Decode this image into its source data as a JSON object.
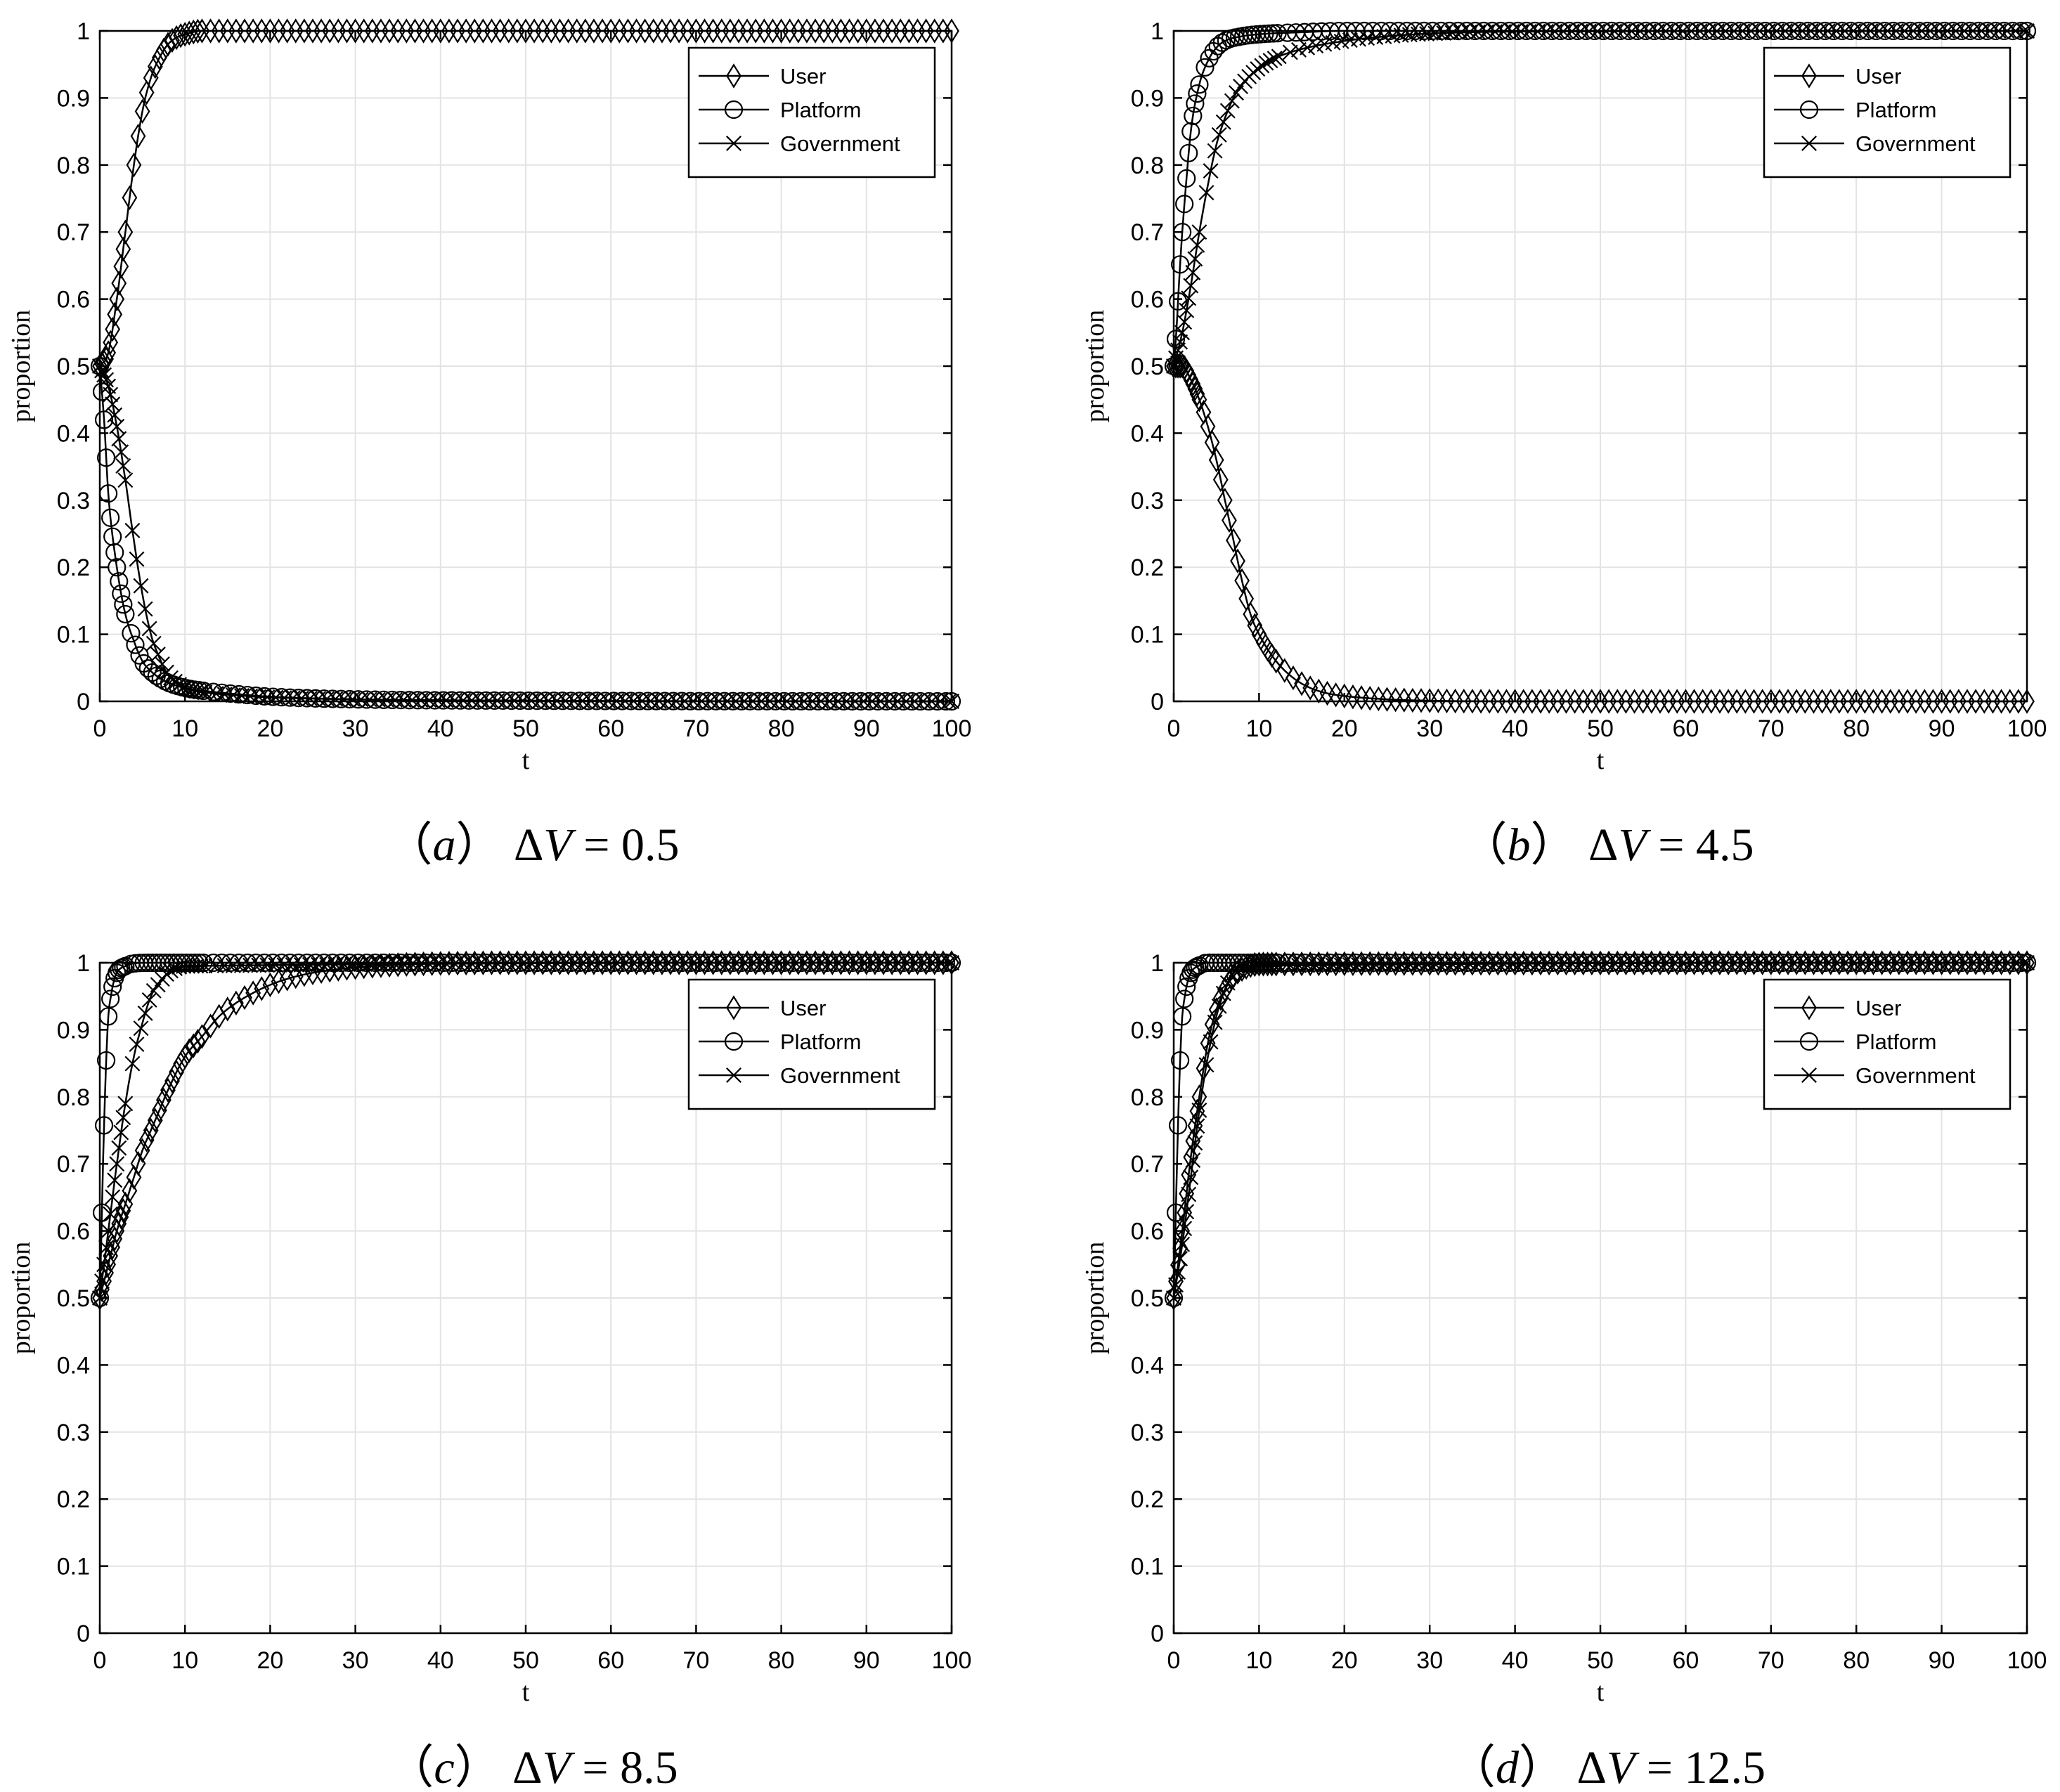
{
  "chart_data": [
    {
      "type": "line",
      "panel": "a",
      "caption_label": "a",
      "caption_eq": "ΔV = 0.5",
      "xlabel": "t",
      "ylabel": "proportion",
      "xlim": [
        0,
        100
      ],
      "ylim": [
        0,
        1
      ],
      "xticks": [
        "0",
        "10",
        "20",
        "30",
        "40",
        "50",
        "60",
        "70",
        "80",
        "90",
        "100"
      ],
      "yticks": [
        "0",
        "0.1",
        "0.2",
        "0.3",
        "0.4",
        "0.5",
        "0.6",
        "0.7",
        "0.8",
        "0.9",
        "1"
      ],
      "grid": true,
      "legend_position": "top-right",
      "series": [
        {
          "name": "User",
          "marker": "diamond",
          "x": [
            0,
            1,
            2,
            3,
            4,
            5,
            6,
            7,
            8,
            9,
            10,
            12,
            15,
            20,
            30,
            50,
            100
          ],
          "y": [
            0.5,
            0.52,
            0.6,
            0.7,
            0.8,
            0.88,
            0.93,
            0.96,
            0.98,
            0.99,
            0.995,
            1,
            1,
            1,
            1,
            1,
            1
          ]
        },
        {
          "name": "Platform",
          "marker": "circle",
          "x": [
            0,
            0.5,
            1,
            2,
            3,
            4,
            5,
            6,
            7,
            8,
            10,
            12,
            15,
            20,
            30,
            50,
            100
          ],
          "y": [
            0.5,
            0.42,
            0.31,
            0.2,
            0.13,
            0.09,
            0.06,
            0.045,
            0.035,
            0.028,
            0.02,
            0.016,
            0.012,
            0.007,
            0.003,
            0.001,
            0
          ]
        },
        {
          "name": "Government",
          "marker": "x",
          "x": [
            0,
            1,
            2,
            3,
            4,
            5,
            6,
            7,
            8,
            9,
            10,
            12,
            15,
            20,
            30,
            50,
            100
          ],
          "y": [
            0.5,
            0.47,
            0.41,
            0.33,
            0.24,
            0.16,
            0.1,
            0.065,
            0.04,
            0.028,
            0.02,
            0.014,
            0.01,
            0.006,
            0.003,
            0.001,
            0
          ]
        }
      ]
    },
    {
      "type": "line",
      "panel": "b",
      "caption_label": "b",
      "caption_eq": "ΔV = 4.5",
      "xlabel": "t",
      "ylabel": "proportion",
      "xlim": [
        0,
        100
      ],
      "ylim": [
        0,
        1
      ],
      "xticks": [
        "0",
        "10",
        "20",
        "30",
        "40",
        "50",
        "60",
        "70",
        "80",
        "90",
        "100"
      ],
      "yticks": [
        "0",
        "0.1",
        "0.2",
        "0.3",
        "0.4",
        "0.5",
        "0.6",
        "0.7",
        "0.8",
        "0.9",
        "1"
      ],
      "grid": true,
      "legend_position": "top-right",
      "series": [
        {
          "name": "User",
          "marker": "diamond",
          "x": [
            0,
            1,
            2,
            3,
            4,
            5,
            6,
            7,
            8,
            9,
            10,
            12,
            14,
            16,
            18,
            20,
            25,
            30,
            40,
            100
          ],
          "y": [
            0.5,
            0.5,
            0.48,
            0.45,
            0.41,
            0.36,
            0.3,
            0.24,
            0.18,
            0.13,
            0.1,
            0.06,
            0.035,
            0.02,
            0.012,
            0.008,
            0.003,
            0.001,
            0,
            0
          ]
        },
        {
          "name": "Platform",
          "marker": "circle",
          "x": [
            0,
            0.3,
            0.6,
            1,
            1.5,
            2,
            3,
            4,
            5,
            6,
            8,
            10,
            15,
            20,
            30,
            100
          ],
          "y": [
            0.5,
            0.55,
            0.62,
            0.7,
            0.78,
            0.85,
            0.92,
            0.955,
            0.975,
            0.985,
            0.992,
            0.995,
            0.998,
            1,
            1,
            1
          ]
        },
        {
          "name": "Government",
          "marker": "x",
          "x": [
            0,
            1,
            2,
            3,
            4,
            5,
            6,
            7,
            8,
            10,
            12,
            15,
            20,
            25,
            30,
            40,
            100
          ],
          "y": [
            0.5,
            0.55,
            0.62,
            0.7,
            0.77,
            0.83,
            0.87,
            0.9,
            0.92,
            0.945,
            0.96,
            0.973,
            0.985,
            0.992,
            0.996,
            0.999,
            1
          ]
        }
      ]
    },
    {
      "type": "line",
      "panel": "c",
      "caption_label": "c",
      "caption_eq": "ΔV = 8.5",
      "xlabel": "t",
      "ylabel": "proportion",
      "xlim": [
        0,
        100
      ],
      "ylim": [
        0,
        1
      ],
      "xticks": [
        "0",
        "10",
        "20",
        "30",
        "40",
        "50",
        "60",
        "70",
        "80",
        "90",
        "100"
      ],
      "yticks": [
        "0",
        "0.1",
        "0.2",
        "0.3",
        "0.4",
        "0.5",
        "0.6",
        "0.7",
        "0.8",
        "0.9",
        "1"
      ],
      "grid": true,
      "legend_position": "top-right",
      "series": [
        {
          "name": "User",
          "marker": "diamond",
          "x": [
            0,
            1,
            2,
            3,
            4,
            5,
            6,
            7,
            8,
            10,
            12,
            14,
            16,
            18,
            20,
            22,
            25,
            30,
            35,
            40,
            50,
            100
          ],
          "y": [
            0.5,
            0.55,
            0.6,
            0.64,
            0.68,
            0.72,
            0.75,
            0.78,
            0.81,
            0.86,
            0.89,
            0.92,
            0.94,
            0.955,
            0.967,
            0.976,
            0.985,
            0.993,
            0.997,
            0.999,
            1,
            1
          ]
        },
        {
          "name": "Platform",
          "marker": "circle",
          "x": [
            0,
            0.2,
            0.4,
            0.6,
            0.8,
            1,
            1.3,
            1.6,
            2,
            3,
            4,
            6,
            100
          ],
          "y": [
            0.5,
            0.6,
            0.71,
            0.8,
            0.87,
            0.92,
            0.95,
            0.97,
            0.985,
            0.995,
            0.999,
            1,
            1
          ]
        },
        {
          "name": "Government",
          "marker": "x",
          "x": [
            0,
            1,
            2,
            3,
            4,
            5,
            6,
            7,
            8,
            10,
            100
          ],
          "y": [
            0.5,
            0.6,
            0.7,
            0.79,
            0.86,
            0.91,
            0.95,
            0.97,
            0.985,
            0.995,
            1
          ]
        }
      ]
    },
    {
      "type": "line",
      "panel": "d",
      "caption_label": "d",
      "caption_eq": "ΔV = 12.5",
      "xlabel": "t",
      "ylabel": "proportion",
      "xlim": [
        0,
        100
      ],
      "ylim": [
        0,
        1
      ],
      "xticks": [
        "0",
        "10",
        "20",
        "30",
        "40",
        "50",
        "60",
        "70",
        "80",
        "90",
        "100"
      ],
      "yticks": [
        "0",
        "0.1",
        "0.2",
        "0.3",
        "0.4",
        "0.5",
        "0.6",
        "0.7",
        "0.8",
        "0.9",
        "1"
      ],
      "grid": true,
      "legend_position": "top-right",
      "series": [
        {
          "name": "User",
          "marker": "diamond",
          "x": [
            0,
            1,
            2,
            3,
            4,
            5,
            6,
            7,
            8,
            10,
            100
          ],
          "y": [
            0.5,
            0.6,
            0.71,
            0.8,
            0.88,
            0.93,
            0.96,
            0.98,
            0.99,
            0.998,
            1
          ]
        },
        {
          "name": "Platform",
          "marker": "circle",
          "x": [
            0,
            0.2,
            0.4,
            0.6,
            0.8,
            1,
            1.3,
            1.6,
            2,
            3,
            4,
            100
          ],
          "y": [
            0.5,
            0.6,
            0.71,
            0.8,
            0.87,
            0.92,
            0.95,
            0.97,
            0.985,
            0.996,
            1,
            1
          ]
        },
        {
          "name": "Government",
          "marker": "x",
          "x": [
            0,
            1,
            2,
            3,
            4,
            5,
            6,
            7,
            8,
            100
          ],
          "y": [
            0.5,
            0.58,
            0.68,
            0.78,
            0.86,
            0.92,
            0.96,
            0.985,
            0.995,
            1
          ]
        }
      ]
    }
  ]
}
